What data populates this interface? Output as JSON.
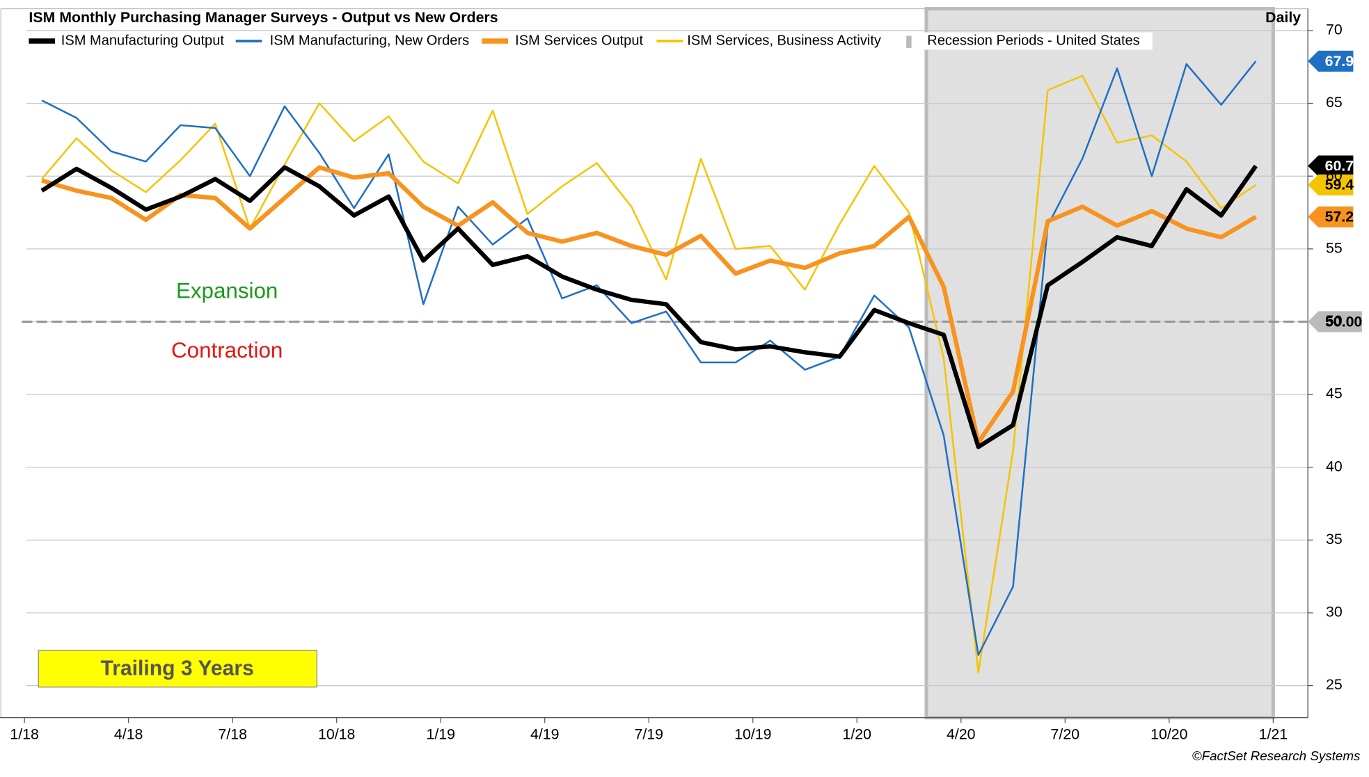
{
  "chart_data": {
    "type": "line",
    "title": "ISM Monthly Purchasing Manager Surveys - Output vs New Orders",
    "frequency": "Daily",
    "source": "©FactSet Research Systems",
    "annotations": [
      "Expansion",
      "Contraction"
    ],
    "period_label": "Trailing 3 Years",
    "x": [
      "1/18",
      "2/18",
      "3/18",
      "4/18",
      "5/18",
      "6/18",
      "7/18",
      "8/18",
      "9/18",
      "10/18",
      "11/18",
      "12/18",
      "1/19",
      "2/19",
      "3/19",
      "4/19",
      "5/19",
      "6/19",
      "7/19",
      "8/19",
      "9/19",
      "10/19",
      "11/19",
      "12/19",
      "1/20",
      "2/20",
      "3/20",
      "4/20",
      "5/20",
      "6/20",
      "7/20",
      "8/20",
      "9/20",
      "10/20",
      "11/20",
      "12/20"
    ],
    "xlim": [
      "12/17",
      "2/21"
    ],
    "xticks": [
      "1/18",
      "4/18",
      "7/18",
      "10/18",
      "1/19",
      "4/19",
      "7/19",
      "10/19",
      "1/20",
      "4/20",
      "7/20",
      "10/20",
      "1/21"
    ],
    "ylim": [
      22.8,
      71.5
    ],
    "yticks": [
      25,
      30,
      35,
      40,
      45,
      50,
      55,
      60,
      65,
      70
    ],
    "grid": true,
    "reference_line": {
      "value": 50,
      "label": "50.00"
    },
    "recession": {
      "name": "Recession Periods - United States",
      "start": "3/20",
      "end": "1/21",
      "color": "#e0e0e0"
    },
    "series": [
      {
        "name": "ISM Manufacturing Output",
        "color": "#000000",
        "width": 5,
        "values": [
          59.0,
          60.5,
          59.2,
          57.7,
          58.6,
          59.8,
          58.3,
          60.6,
          59.3,
          57.3,
          58.6,
          54.2,
          56.4,
          53.9,
          54.5,
          53.1,
          52.2,
          51.5,
          51.2,
          48.6,
          48.1,
          48.3,
          47.9,
          47.6,
          50.8,
          49.9,
          49.1,
          41.4,
          42.9,
          52.5,
          54.1,
          55.8,
          55.2,
          59.1,
          57.3,
          60.7
        ]
      },
      {
        "name": "ISM Manufacturing, New Orders",
        "color": "#1f6fc5",
        "width": 2,
        "values": [
          65.2,
          64.0,
          61.7,
          61.0,
          63.5,
          63.3,
          60.0,
          64.8,
          61.6,
          57.8,
          61.5,
          51.2,
          57.9,
          55.3,
          57.1,
          51.6,
          52.5,
          49.9,
          50.7,
          47.2,
          47.2,
          48.7,
          46.7,
          47.6,
          51.8,
          49.6,
          42.2,
          27.1,
          31.8,
          56.6,
          61.2,
          67.4,
          60.0,
          67.7,
          64.9,
          67.9
        ]
      },
      {
        "name": "ISM Services Output",
        "color": "#f7931e",
        "width": 5,
        "values": [
          59.7,
          59.0,
          58.5,
          57.0,
          58.7,
          58.5,
          56.4,
          58.5,
          60.6,
          59.9,
          60.2,
          57.9,
          56.6,
          58.2,
          56.1,
          55.5,
          56.1,
          55.2,
          54.6,
          55.9,
          53.3,
          54.2,
          53.7,
          54.7,
          55.2,
          57.2,
          52.4,
          41.7,
          45.2,
          56.9,
          57.9,
          56.6,
          57.6,
          56.4,
          55.8,
          57.2
        ]
      },
      {
        "name": "ISM Services, Business Activity",
        "color": "#f5c400",
        "width": 2,
        "values": [
          59.8,
          62.6,
          60.4,
          58.9,
          61.1,
          63.6,
          56.4,
          60.8,
          65.0,
          62.4,
          64.1,
          61.0,
          59.5,
          64.5,
          57.4,
          59.3,
          60.9,
          57.9,
          52.9,
          61.2,
          55.0,
          55.2,
          52.2,
          56.7,
          60.7,
          57.5,
          47.5,
          25.9,
          41.1,
          65.9,
          66.9,
          62.3,
          62.8,
          61.0,
          57.8,
          59.4
        ]
      }
    ]
  }
}
